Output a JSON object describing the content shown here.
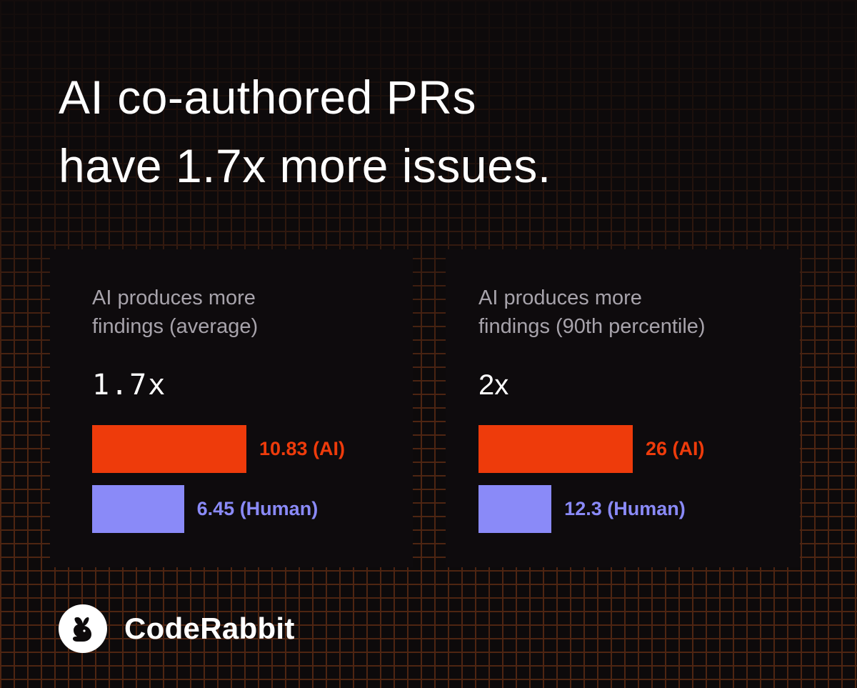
{
  "headline": {
    "line1": "AI co-authored PRs",
    "line2": "have 1.7x more issues."
  },
  "colors": {
    "ai": "#ee3b0b",
    "human": "#8a8af8",
    "background": "#0d0a0b",
    "card": "#0e0b0d",
    "grid": "#5a2a14"
  },
  "brand": {
    "name": "CodeRabbit",
    "icon": "rabbit-logo-icon"
  },
  "chart_data": [
    {
      "type": "bar",
      "orientation": "horizontal",
      "title_line1": "AI produces more",
      "title_line2": "findings (average)",
      "ratio": "1.7x",
      "categories": [
        "AI",
        "Human"
      ],
      "values": [
        10.83,
        6.45
      ],
      "labels": [
        "10.83 (AI)",
        "6.45 (Human)"
      ],
      "colors": [
        "#ee3b0b",
        "#8a8af8"
      ],
      "xlim": [
        0,
        10.83
      ]
    },
    {
      "type": "bar",
      "orientation": "horizontal",
      "title_line1": "AI produces more",
      "title_line2": "findings (90th percentile)",
      "ratio": "2x",
      "categories": [
        "AI",
        "Human"
      ],
      "values": [
        26,
        12.3
      ],
      "labels": [
        "26 (AI)",
        "12.3 (Human)"
      ],
      "colors": [
        "#ee3b0b",
        "#8a8af8"
      ],
      "xlim": [
        0,
        26
      ]
    }
  ]
}
